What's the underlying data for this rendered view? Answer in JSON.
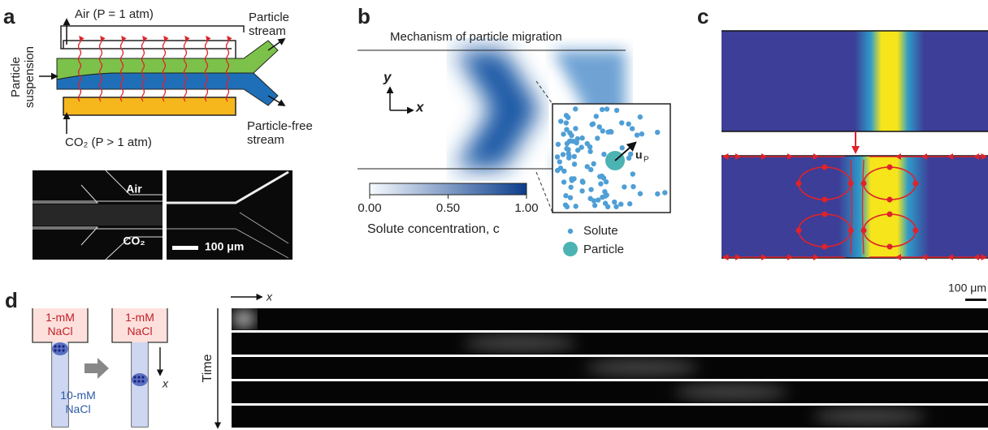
{
  "panels": {
    "a": {
      "label": "a",
      "air_label": "Air (P = 1 atm)",
      "co2_label": "CO₂ (P > 1 atm)",
      "inlet": [
        "Particle",
        "suspension"
      ],
      "outlet_top": [
        "Particle",
        "stream"
      ],
      "outlet_bottom": [
        "Particle-free",
        "stream"
      ],
      "image_air": "Air",
      "image_co2": "CO₂",
      "scale_bar": "100 μm"
    },
    "b": {
      "label": "b",
      "title": "Mechanism of particle migration",
      "axis_y": "y",
      "axis_x": "x",
      "colorbar_ticks": [
        "0.00",
        "0.50",
        "1.00"
      ],
      "colorbar_label": "Solute concentration, c",
      "velocity_label": "u",
      "velocity_sub": "P",
      "legend": [
        "Solute",
        "Particle"
      ]
    },
    "c": {
      "label": "c"
    },
    "d": {
      "label": "d",
      "reservoir_left": [
        "1-mM",
        "NaCl"
      ],
      "reservoir_right": [
        "1-mM",
        "NaCl"
      ],
      "channel": [
        "10-mM",
        "NaCl"
      ],
      "tube_axis": "x",
      "axis_x": "x",
      "time_label": "Time",
      "scale_bar": "100 μm"
    }
  }
}
